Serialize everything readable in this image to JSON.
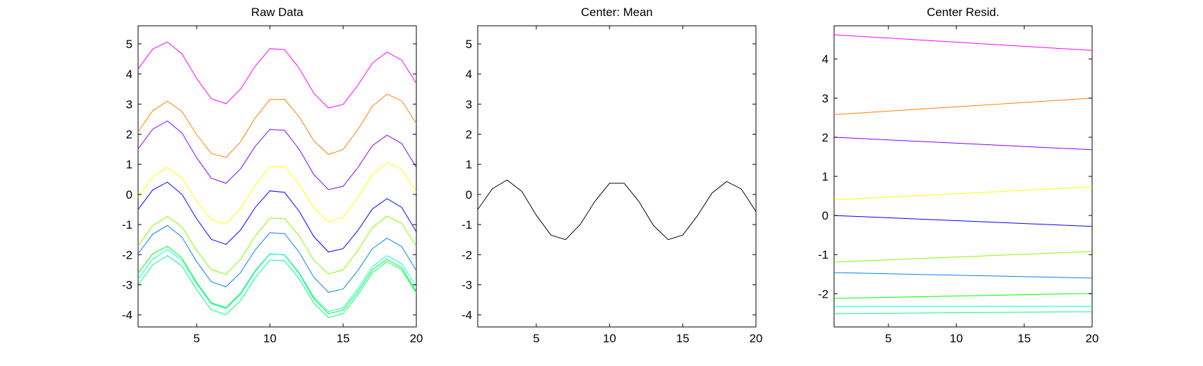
{
  "chart_data": [
    {
      "type": "line",
      "title": "Raw Data",
      "xlabel": "",
      "ylabel": "",
      "xlim": [
        1,
        20
      ],
      "ylim": [
        -4.4,
        5.6
      ],
      "xticks": [
        5,
        10,
        15,
        20
      ],
      "yticks": [
        -4,
        -3,
        -2,
        -1,
        0,
        1,
        2,
        3,
        4,
        5
      ],
      "grid": false,
      "x": [
        1,
        2,
        3,
        4,
        5,
        6,
        7,
        8,
        9,
        10,
        11,
        12,
        13,
        14,
        15,
        16,
        17,
        18,
        19,
        20
      ],
      "series": [
        {
          "color": "#ff00ff",
          "values": [
            4.16,
            4.83,
            5.06,
            4.67,
            3.85,
            3.18,
            3.01,
            3.5,
            4.26,
            4.84,
            4.81,
            4.19,
            3.36,
            2.87,
            2.99,
            3.62,
            4.36,
            4.73,
            4.46,
            3.69
          ]
        },
        {
          "color": "#ff8000",
          "values": [
            2.08,
            2.78,
            3.1,
            2.75,
            1.99,
            1.36,
            1.23,
            1.75,
            2.54,
            3.15,
            3.16,
            2.58,
            1.78,
            1.33,
            1.49,
            2.15,
            2.93,
            3.33,
            3.11,
            2.36
          ]
        },
        {
          "color": "#8000ff",
          "values": [
            1.51,
            2.17,
            2.44,
            2.04,
            1.22,
            0.54,
            0.37,
            0.85,
            1.6,
            2.16,
            2.13,
            1.5,
            0.66,
            0.16,
            0.27,
            0.89,
            1.62,
            1.97,
            1.69,
            0.9
          ]
        },
        {
          "color": "#ffff00",
          "values": [
            -0.09,
            0.59,
            0.9,
            0.55,
            -0.21,
            -0.84,
            -0.98,
            -0.47,
            0.31,
            0.92,
            0.92,
            0.34,
            -0.45,
            -0.91,
            -0.76,
            -0.11,
            0.66,
            1.06,
            0.83,
            0.08
          ]
        },
        {
          "color": "#0000ff",
          "values": [
            -0.5,
            0.15,
            0.41,
            0.0,
            -0.81,
            -1.49,
            -1.66,
            -1.18,
            -0.43,
            0.12,
            0.07,
            -0.56,
            -1.4,
            -1.91,
            -1.8,
            -1.2,
            -0.48,
            -0.14,
            -0.43,
            -1.24
          ]
        },
        {
          "color": "#80ff00",
          "values": [
            -1.71,
            -1.04,
            -0.73,
            -1.08,
            -1.86,
            -2.5,
            -2.65,
            -2.15,
            -1.38,
            -0.79,
            -0.8,
            -1.38,
            -2.18,
            -2.64,
            -2.5,
            -1.86,
            -1.1,
            -0.72,
            -0.96,
            -1.72
          ]
        },
        {
          "color": "#0080ff",
          "values": [
            -1.97,
            -1.32,
            -1.03,
            -1.42,
            -2.23,
            -2.9,
            -3.07,
            -2.59,
            -1.84,
            -1.27,
            -1.3,
            -1.92,
            -2.75,
            -3.25,
            -3.14,
            -2.53,
            -1.8,
            -1.45,
            -1.73,
            -2.53
          ]
        },
        {
          "color": "#00ff00",
          "values": [
            -2.62,
            -1.97,
            -1.72,
            -2.11,
            -2.92,
            -3.6,
            -3.76,
            -3.28,
            -2.53,
            -1.97,
            -2.01,
            -2.63,
            -3.46,
            -3.96,
            -3.84,
            -3.23,
            -2.5,
            -2.15,
            -2.43,
            -3.23
          ]
        },
        {
          "color": "#00ffff",
          "values": [
            -2.81,
            -2.14,
            -1.83,
            -2.18,
            -2.97,
            -3.63,
            -3.79,
            -3.32,
            -2.56,
            -1.98,
            -2.0,
            -2.6,
            -3.41,
            -3.89,
            -3.76,
            -3.14,
            -2.4,
            -2.03,
            -2.3,
            -3.07
          ]
        },
        {
          "color": "#00ff80",
          "values": [
            -3.01,
            -2.34,
            -2.03,
            -2.38,
            -3.17,
            -3.83,
            -3.99,
            -3.52,
            -2.76,
            -2.18,
            -2.2,
            -2.8,
            -3.61,
            -4.09,
            -3.96,
            -3.34,
            -2.6,
            -2.23,
            -2.5,
            -3.27
          ]
        }
      ]
    },
    {
      "type": "line",
      "title": "Center: Mean",
      "xlabel": "",
      "ylabel": "",
      "xlim": [
        1,
        20
      ],
      "ylim": [
        -4.4,
        5.6
      ],
      "xticks": [
        5,
        10,
        15,
        20
      ],
      "yticks": [
        -4,
        -3,
        -2,
        -1,
        0,
        1,
        2,
        3,
        4,
        5
      ],
      "grid": false,
      "x": [
        1,
        2,
        3,
        4,
        5,
        6,
        7,
        8,
        9,
        10,
        11,
        12,
        13,
        14,
        15,
        16,
        17,
        18,
        19,
        20
      ],
      "series": [
        {
          "color": "#000000",
          "values": [
            -0.5,
            0.19,
            0.48,
            0.11,
            -0.69,
            -1.35,
            -1.5,
            -1.0,
            -0.23,
            0.37,
            0.37,
            -0.23,
            -1.03,
            -1.5,
            -1.35,
            -0.71,
            0.05,
            0.43,
            0.18,
            -0.57
          ]
        }
      ]
    },
    {
      "type": "line",
      "title": "Center Resid.",
      "xlabel": "",
      "ylabel": "",
      "xlim": [
        1,
        20
      ],
      "ylim": [
        -2.85,
        4.85
      ],
      "xticks": [
        5,
        10,
        15,
        20
      ],
      "yticks": [
        -2,
        -1,
        0,
        1,
        2,
        3,
        4
      ],
      "grid": false,
      "x": [
        1,
        20
      ],
      "series": [
        {
          "color": "#ff00ff",
          "values": [
            4.62,
            4.22
          ]
        },
        {
          "color": "#ff8000",
          "values": [
            2.58,
            3.0
          ]
        },
        {
          "color": "#8000ff",
          "values": [
            2.0,
            1.68
          ]
        },
        {
          "color": "#ffff00",
          "values": [
            0.4,
            0.73
          ]
        },
        {
          "color": "#0000ff",
          "values": [
            0.0,
            -0.28
          ]
        },
        {
          "color": "#80ff00",
          "values": [
            -1.19,
            -0.92
          ]
        },
        {
          "color": "#0080ff",
          "values": [
            -1.46,
            -1.6
          ]
        },
        {
          "color": "#00ff00",
          "values": [
            -2.12,
            -1.99
          ]
        },
        {
          "color": "#00ffff",
          "values": [
            -2.32,
            -2.32
          ]
        },
        {
          "color": "#00ff80",
          "values": [
            -2.51,
            -2.46
          ]
        }
      ]
    }
  ]
}
